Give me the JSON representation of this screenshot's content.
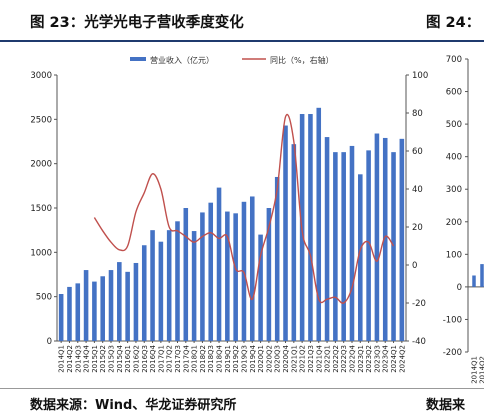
{
  "page": {
    "figure_title": "图 23：光学光电子营收季度变化",
    "figure_title_right": "图 24：",
    "source": "数据来源：Wind、华龙证券研究所",
    "source_right": "数据来"
  },
  "colors": {
    "bar": "#4472c4",
    "line": "#c0504d",
    "rule": "#1f3a6e"
  },
  "chart_data": [
    {
      "type": "bar+line",
      "title": "",
      "xlabel": "",
      "ylabel_left": "",
      "ylabel_right": "",
      "categories": [
        "2014Q1",
        "2014Q2",
        "2014Q3",
        "2014Q4",
        "2015Q1",
        "2015Q2",
        "2015Q3",
        "2015Q4",
        "2016Q1",
        "2016Q2",
        "2016Q3",
        "2016Q4",
        "2017Q1",
        "2017Q2",
        "2017Q3",
        "2017Q4",
        "2018Q1",
        "2018Q2",
        "2018Q3",
        "2018Q4",
        "2019Q1",
        "2019Q2",
        "2019Q3",
        "2019Q4",
        "2020Q1",
        "2020Q2",
        "2020Q3",
        "2020Q4",
        "2021Q1",
        "2021Q2",
        "2021Q3",
        "2021Q4",
        "2022Q1",
        "2022Q2",
        "2022Q3",
        "2022Q4",
        "2023Q1",
        "2023Q2",
        "2023Q3",
        "2023Q4",
        "2024Q1",
        "2024Q2"
      ],
      "series": [
        {
          "name": "营业收入（亿元）",
          "type": "bar",
          "axis": "left",
          "values": [
            530,
            610,
            650,
            800,
            670,
            730,
            800,
            890,
            780,
            880,
            1080,
            1250,
            1120,
            1250,
            1350,
            1500,
            1240,
            1450,
            1560,
            1730,
            1460,
            1440,
            1570,
            1630,
            1200,
            1500,
            1850,
            2430,
            2220,
            2560,
            2560,
            2630,
            2300,
            2130,
            2130,
            2200,
            1880,
            2150,
            2340,
            2290,
            2130,
            2280
          ]
        },
        {
          "name": "同比（%，右轴）",
          "type": "line",
          "axis": "right",
          "values": [
            null,
            null,
            null,
            null,
            25,
            18,
            12,
            8,
            10,
            28,
            38,
            48,
            40,
            20,
            18,
            15,
            12,
            15,
            17,
            14,
            15,
            -2,
            -4,
            -18,
            5,
            20,
            40,
            78,
            65,
            18,
            5,
            -18,
            -18,
            -17,
            -20,
            -12,
            8,
            12,
            2,
            15,
            10,
            null
          ]
        }
      ],
      "ylim_left": [
        0,
        3000
      ],
      "yticks_left": [
        0,
        500,
        1000,
        1500,
        2000,
        2500,
        3000
      ],
      "ylim_right": [
        -40,
        100
      ],
      "yticks_right": [
        -40,
        -20,
        0,
        20,
        40,
        60,
        80,
        100
      ],
      "legend": "top-center",
      "grid": false
    },
    {
      "type": "bar+line",
      "title": "",
      "categories": [
        "2014Q1",
        "2014Q2"
      ],
      "series": [
        {
          "type": "bar",
          "axis": "right",
          "values": [
            35,
            70
          ]
        },
        {
          "type": "line",
          "axis": "right",
          "values": [
            null,
            null
          ]
        }
      ],
      "ylim": [
        -200,
        700
      ],
      "yticks": [
        -200,
        -100,
        0,
        100,
        200,
        300,
        400,
        500,
        600,
        700
      ],
      "grid": false
    }
  ]
}
